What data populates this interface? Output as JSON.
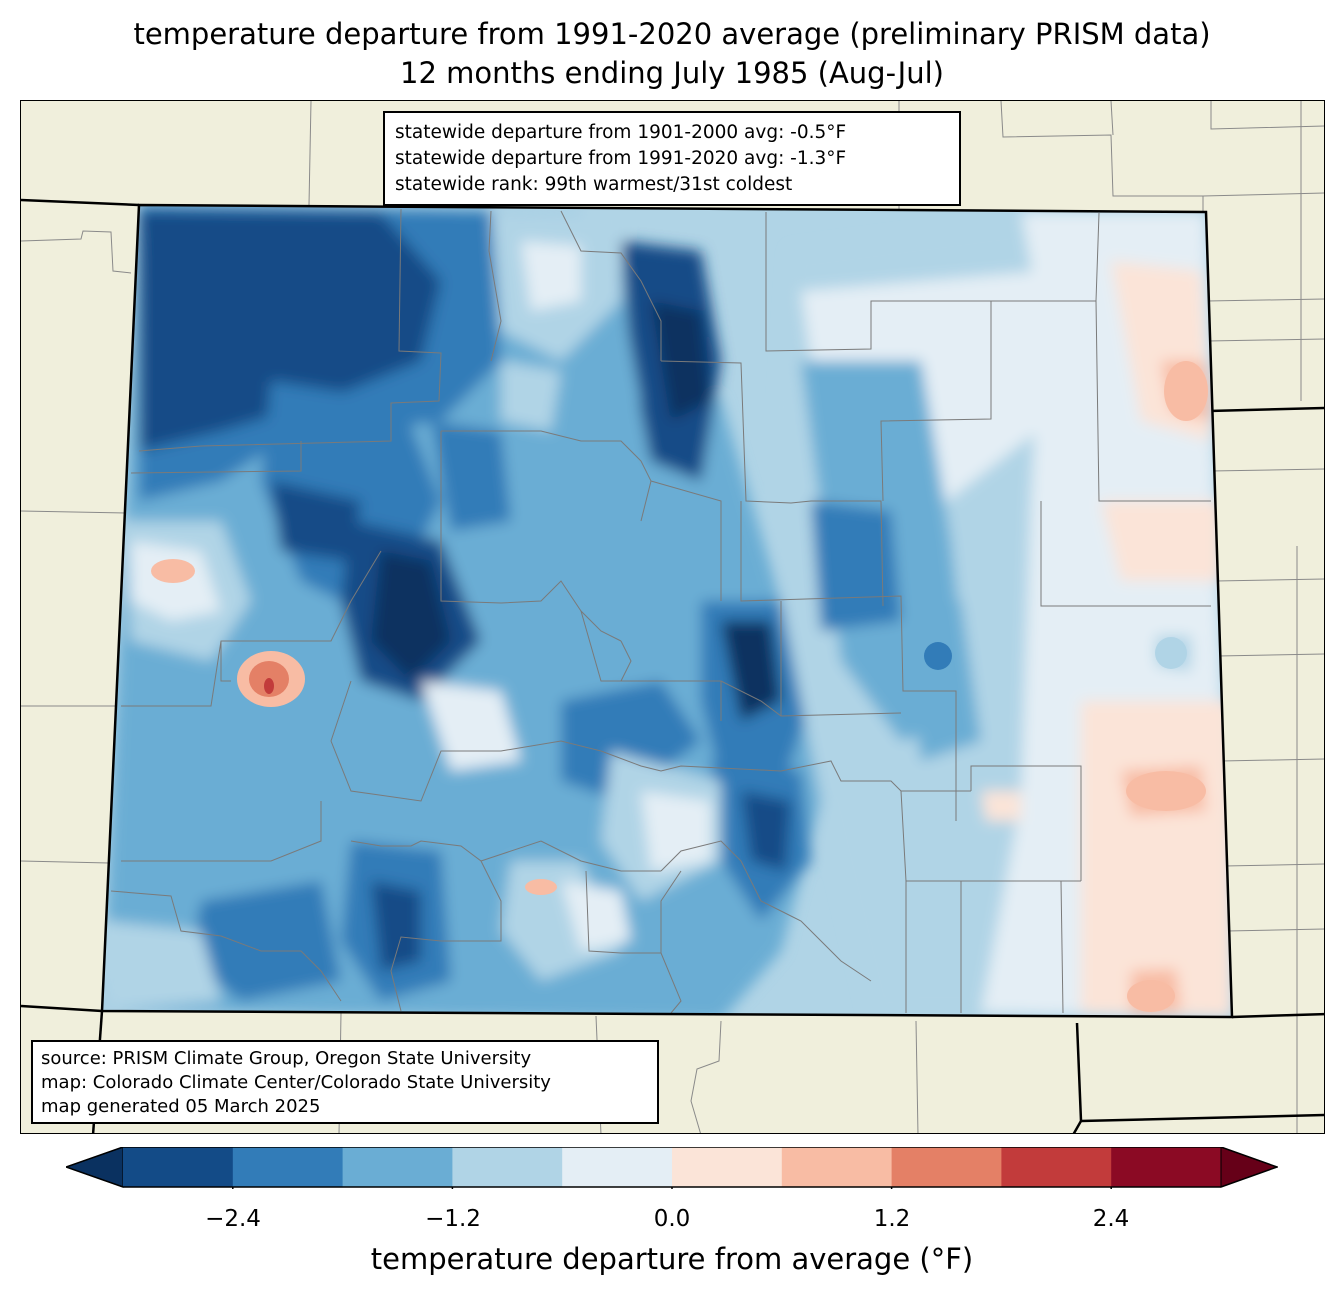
{
  "title": {
    "line1": "temperature departure from 1991-2020 average (preliminary PRISM data)",
    "line2": "12 months ending July 1985 (Aug-Jul)"
  },
  "stats": {
    "line1": "statewide departure from 1901-2000 avg: -0.5°F",
    "line2": "statewide departure from 1991-2020 avg: -1.3°F",
    "line3": "statewide rank: 99th warmest/31st coldest"
  },
  "source": {
    "line1": "source: PRISM Climate Group, Oregon State University",
    "line2": "map: Colorado Climate Center/Colorado State University",
    "line3": "map generated 05 March 2025"
  },
  "colorbar": {
    "label": "temperature departure from average (°F)",
    "ticks": [
      "−2.4",
      "−1.2",
      "0.0",
      "1.2",
      "2.4"
    ],
    "colors": {
      "under": "#0a3160",
      "bins": [
        "#134b87",
        "#327cb8",
        "#6aadd4",
        "#b0d4e6",
        "#e4eef5",
        "#fbe4d8",
        "#f8bca4",
        "#e48066",
        "#c23b3b",
        "#8b0a24"
      ],
      "over": "#660018",
      "background": "#f0efdc"
    }
  }
}
